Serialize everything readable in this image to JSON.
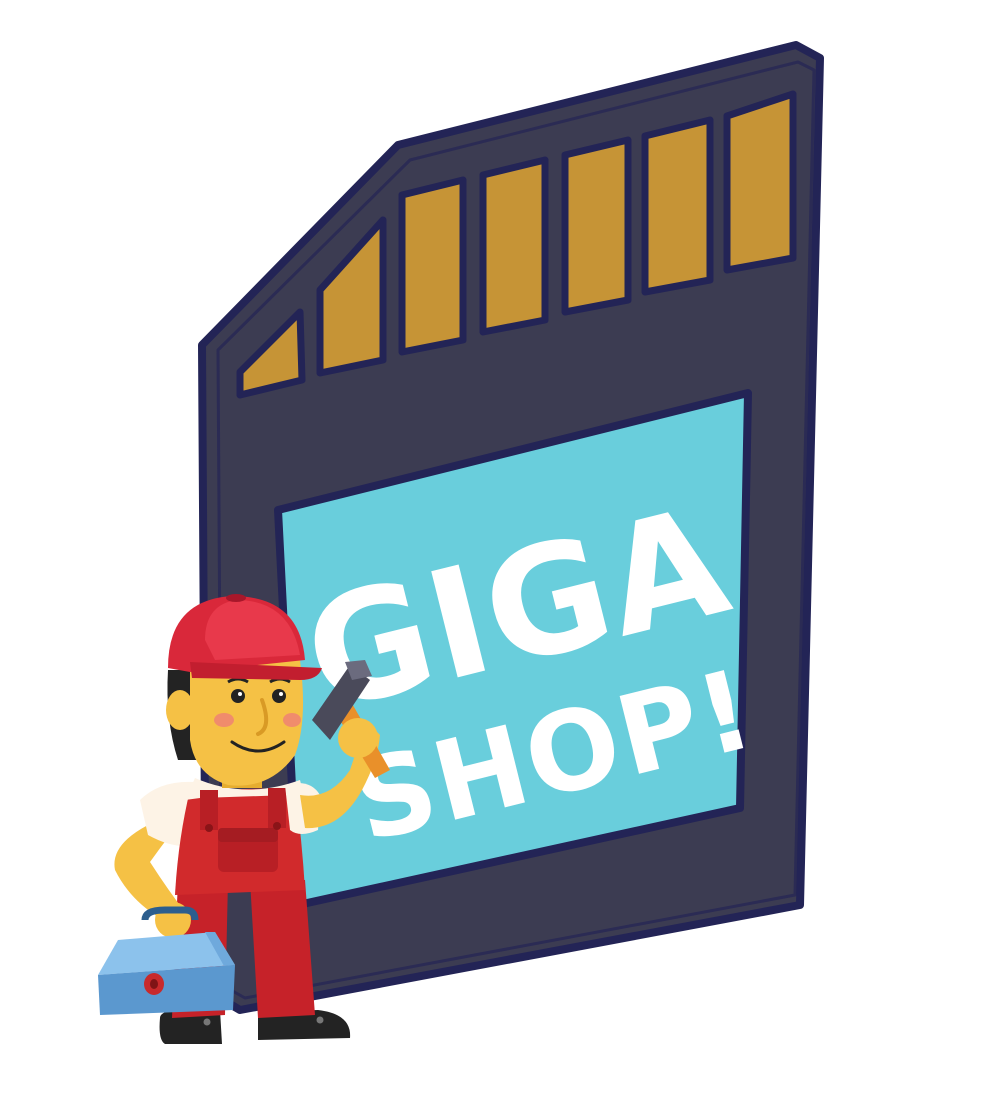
{
  "card": {
    "line1": "GIGA",
    "line2": "SHOP!"
  },
  "colors": {
    "card_body": "#3c3c52",
    "card_outline": "#232456",
    "contacts": "#c69436",
    "label": "#69cedc",
    "label_text": "#ffffff",
    "cap": "#d9283a",
    "overalls": "#d12a2c",
    "skin": "#f5c145",
    "toolbox": "#5b98cf"
  },
  "icons": {
    "card": "sd-card-icon",
    "worker": "worker-mascot-icon",
    "hammer": "hammer-icon",
    "toolbox": "toolbox-icon"
  }
}
